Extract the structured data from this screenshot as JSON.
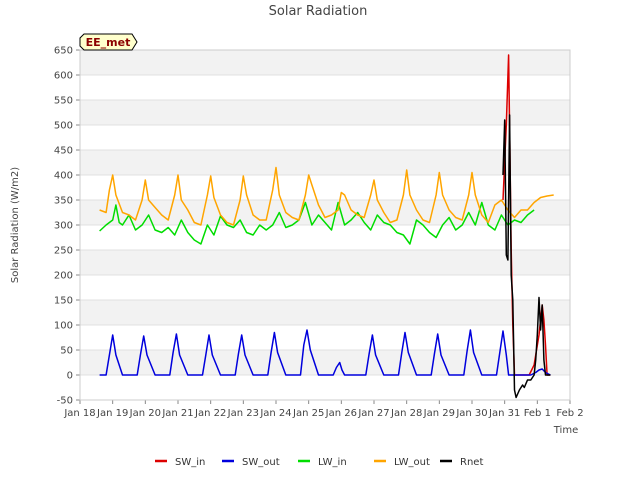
{
  "chart_data": {
    "type": "line",
    "title": "Solar Radiation",
    "xlabel": "Time",
    "ylabel": "Solar Radiation (W/m2)",
    "badge": "EE_met",
    "ylim": [
      -50,
      650
    ],
    "yticks": [
      -50,
      0,
      50,
      100,
      150,
      200,
      250,
      300,
      350,
      400,
      450,
      500,
      550,
      600,
      650
    ],
    "xlim": [
      0,
      15
    ],
    "xtick_labels": [
      "Jan 18",
      "Jan 19",
      "Jan 20",
      "Jan 21",
      "Jan 22",
      "Jan 23",
      "Jan 24",
      "Jan 25",
      "Jan 26",
      "Jan 27",
      "Jan 28",
      "Jan 29",
      "Jan 30",
      "Jan 31",
      "Feb 1",
      "Feb 2"
    ],
    "grid": true,
    "legend_position": "bottom",
    "series": [
      {
        "name": "SW_in",
        "color": "#dd0000",
        "x": [
          12.95,
          13.05,
          13.12,
          13.16,
          13.2,
          13.25,
          13.3,
          13.35,
          13.45,
          13.5,
          13.6,
          13.75,
          13.9,
          14.05,
          14.15,
          14.2,
          14.25,
          14.3,
          14.4
        ],
        "y": [
          350,
          500,
          640,
          450,
          250,
          100,
          0,
          0,
          0,
          0,
          0,
          0,
          20,
          80,
          140,
          110,
          60,
          0,
          0
        ]
      },
      {
        "name": "SW_out",
        "color": "#0000dd",
        "x": [
          0.6,
          0.8,
          0.9,
          1.0,
          1.1,
          1.3,
          1.5,
          1.75,
          1.85,
          1.95,
          2.05,
          2.3,
          2.5,
          2.75,
          2.85,
          2.95,
          3.05,
          3.3,
          3.5,
          3.75,
          3.85,
          3.95,
          4.05,
          4.3,
          4.5,
          4.75,
          4.85,
          4.95,
          5.05,
          5.3,
          5.5,
          5.75,
          5.85,
          5.95,
          6.05,
          6.3,
          6.5,
          6.75,
          6.85,
          6.95,
          7.05,
          7.3,
          7.5,
          7.75,
          7.85,
          7.95,
          8.02,
          8.1,
          8.3,
          8.5,
          8.75,
          8.85,
          8.95,
          9.05,
          9.3,
          9.5,
          9.75,
          9.85,
          9.95,
          10.05,
          10.3,
          10.5,
          10.75,
          10.85,
          10.95,
          11.05,
          11.3,
          11.5,
          11.75,
          11.85,
          11.95,
          12.05,
          12.3,
          12.5,
          12.75,
          12.85,
          12.95,
          13.05,
          13.12,
          13.2,
          13.3,
          13.5,
          13.8,
          13.95,
          14.05,
          14.15,
          14.25,
          14.4
        ],
        "y": [
          0,
          0,
          40,
          80,
          40,
          0,
          0,
          0,
          40,
          78,
          40,
          0,
          0,
          0,
          45,
          82,
          40,
          0,
          0,
          0,
          40,
          80,
          40,
          0,
          0,
          0,
          42,
          80,
          40,
          0,
          0,
          0,
          45,
          85,
          45,
          0,
          0,
          0,
          60,
          90,
          50,
          0,
          0,
          0,
          15,
          25,
          10,
          0,
          0,
          0,
          0,
          42,
          80,
          40,
          0,
          0,
          0,
          45,
          85,
          45,
          0,
          0,
          0,
          42,
          82,
          40,
          0,
          0,
          0,
          48,
          90,
          45,
          0,
          0,
          0,
          45,
          88,
          40,
          0,
          0,
          0,
          0,
          0,
          5,
          10,
          12,
          5,
          0
        ]
      },
      {
        "name": "LW_in",
        "color": "#00dd00",
        "x": [
          0.6,
          0.8,
          1.0,
          1.1,
          1.2,
          1.3,
          1.5,
          1.7,
          1.9,
          2.1,
          2.3,
          2.5,
          2.7,
          2.9,
          3.1,
          3.3,
          3.5,
          3.7,
          3.9,
          4.1,
          4.3,
          4.5,
          4.7,
          4.9,
          5.1,
          5.3,
          5.5,
          5.7,
          5.9,
          6.1,
          6.3,
          6.5,
          6.7,
          6.9,
          7.1,
          7.3,
          7.5,
          7.7,
          7.9,
          8.1,
          8.3,
          8.5,
          8.7,
          8.9,
          9.1,
          9.3,
          9.5,
          9.7,
          9.9,
          10.1,
          10.3,
          10.5,
          10.7,
          10.9,
          11.1,
          11.3,
          11.5,
          11.7,
          11.9,
          12.1,
          12.3,
          12.5,
          12.7,
          12.9,
          13.1,
          13.3,
          13.5,
          13.7,
          13.9
        ],
        "y": [
          288,
          300,
          310,
          340,
          305,
          300,
          320,
          290,
          300,
          320,
          290,
          285,
          295,
          280,
          310,
          285,
          270,
          262,
          300,
          280,
          318,
          300,
          295,
          310,
          285,
          280,
          300,
          290,
          300,
          325,
          295,
          300,
          310,
          345,
          300,
          320,
          305,
          290,
          345,
          300,
          310,
          325,
          305,
          290,
          320,
          305,
          300,
          285,
          280,
          262,
          310,
          300,
          285,
          275,
          300,
          315,
          290,
          300,
          325,
          300,
          345,
          300,
          290,
          320,
          300,
          310,
          305,
          320,
          330
        ]
      },
      {
        "name": "LW_out",
        "color": "#ffa500",
        "x": [
          0.6,
          0.8,
          0.9,
          1.0,
          1.1,
          1.3,
          1.5,
          1.7,
          1.9,
          2.0,
          2.1,
          2.3,
          2.5,
          2.7,
          2.9,
          3.0,
          3.1,
          3.3,
          3.5,
          3.7,
          3.9,
          4.0,
          4.1,
          4.3,
          4.5,
          4.7,
          4.9,
          5.0,
          5.1,
          5.3,
          5.5,
          5.7,
          5.9,
          6.0,
          6.1,
          6.3,
          6.5,
          6.7,
          6.9,
          7.0,
          7.1,
          7.3,
          7.5,
          7.7,
          7.9,
          8.0,
          8.1,
          8.3,
          8.5,
          8.7,
          8.9,
          9.0,
          9.1,
          9.3,
          9.5,
          9.7,
          9.9,
          10.0,
          10.1,
          10.3,
          10.5,
          10.7,
          10.9,
          11.0,
          11.1,
          11.3,
          11.5,
          11.7,
          11.9,
          12.0,
          12.1,
          12.3,
          12.5,
          12.7,
          12.9,
          13.1,
          13.3,
          13.5,
          13.7,
          13.9,
          14.1,
          14.3,
          14.5
        ],
        "y": [
          330,
          325,
          370,
          400,
          360,
          325,
          320,
          310,
          350,
          390,
          350,
          335,
          320,
          310,
          360,
          400,
          350,
          330,
          305,
          300,
          360,
          398,
          355,
          320,
          305,
          300,
          350,
          398,
          360,
          320,
          310,
          310,
          370,
          415,
          360,
          325,
          315,
          310,
          360,
          400,
          380,
          340,
          315,
          320,
          330,
          365,
          360,
          330,
          320,
          315,
          360,
          390,
          350,
          325,
          305,
          310,
          360,
          410,
          360,
          330,
          310,
          305,
          360,
          405,
          360,
          330,
          315,
          310,
          360,
          405,
          360,
          320,
          305,
          340,
          350,
          330,
          315,
          330,
          330,
          345,
          355,
          358,
          360
        ]
      },
      {
        "name": "Rnet",
        "color": "#000000",
        "x": [
          12.95,
          13.0,
          13.05,
          13.1,
          13.15,
          13.2,
          13.25,
          13.3,
          13.35,
          13.45,
          13.55,
          13.6,
          13.7,
          13.8,
          13.9,
          13.95,
          14.0,
          14.05,
          14.1,
          14.15,
          14.2,
          14.25,
          14.3,
          14.35,
          14.4
        ],
        "y": [
          400,
          510,
          240,
          230,
          520,
          200,
          150,
          -30,
          -45,
          -30,
          -20,
          -25,
          -10,
          -10,
          0,
          30,
          80,
          155,
          90,
          140,
          30,
          0,
          0,
          0,
          0
        ]
      }
    ]
  }
}
